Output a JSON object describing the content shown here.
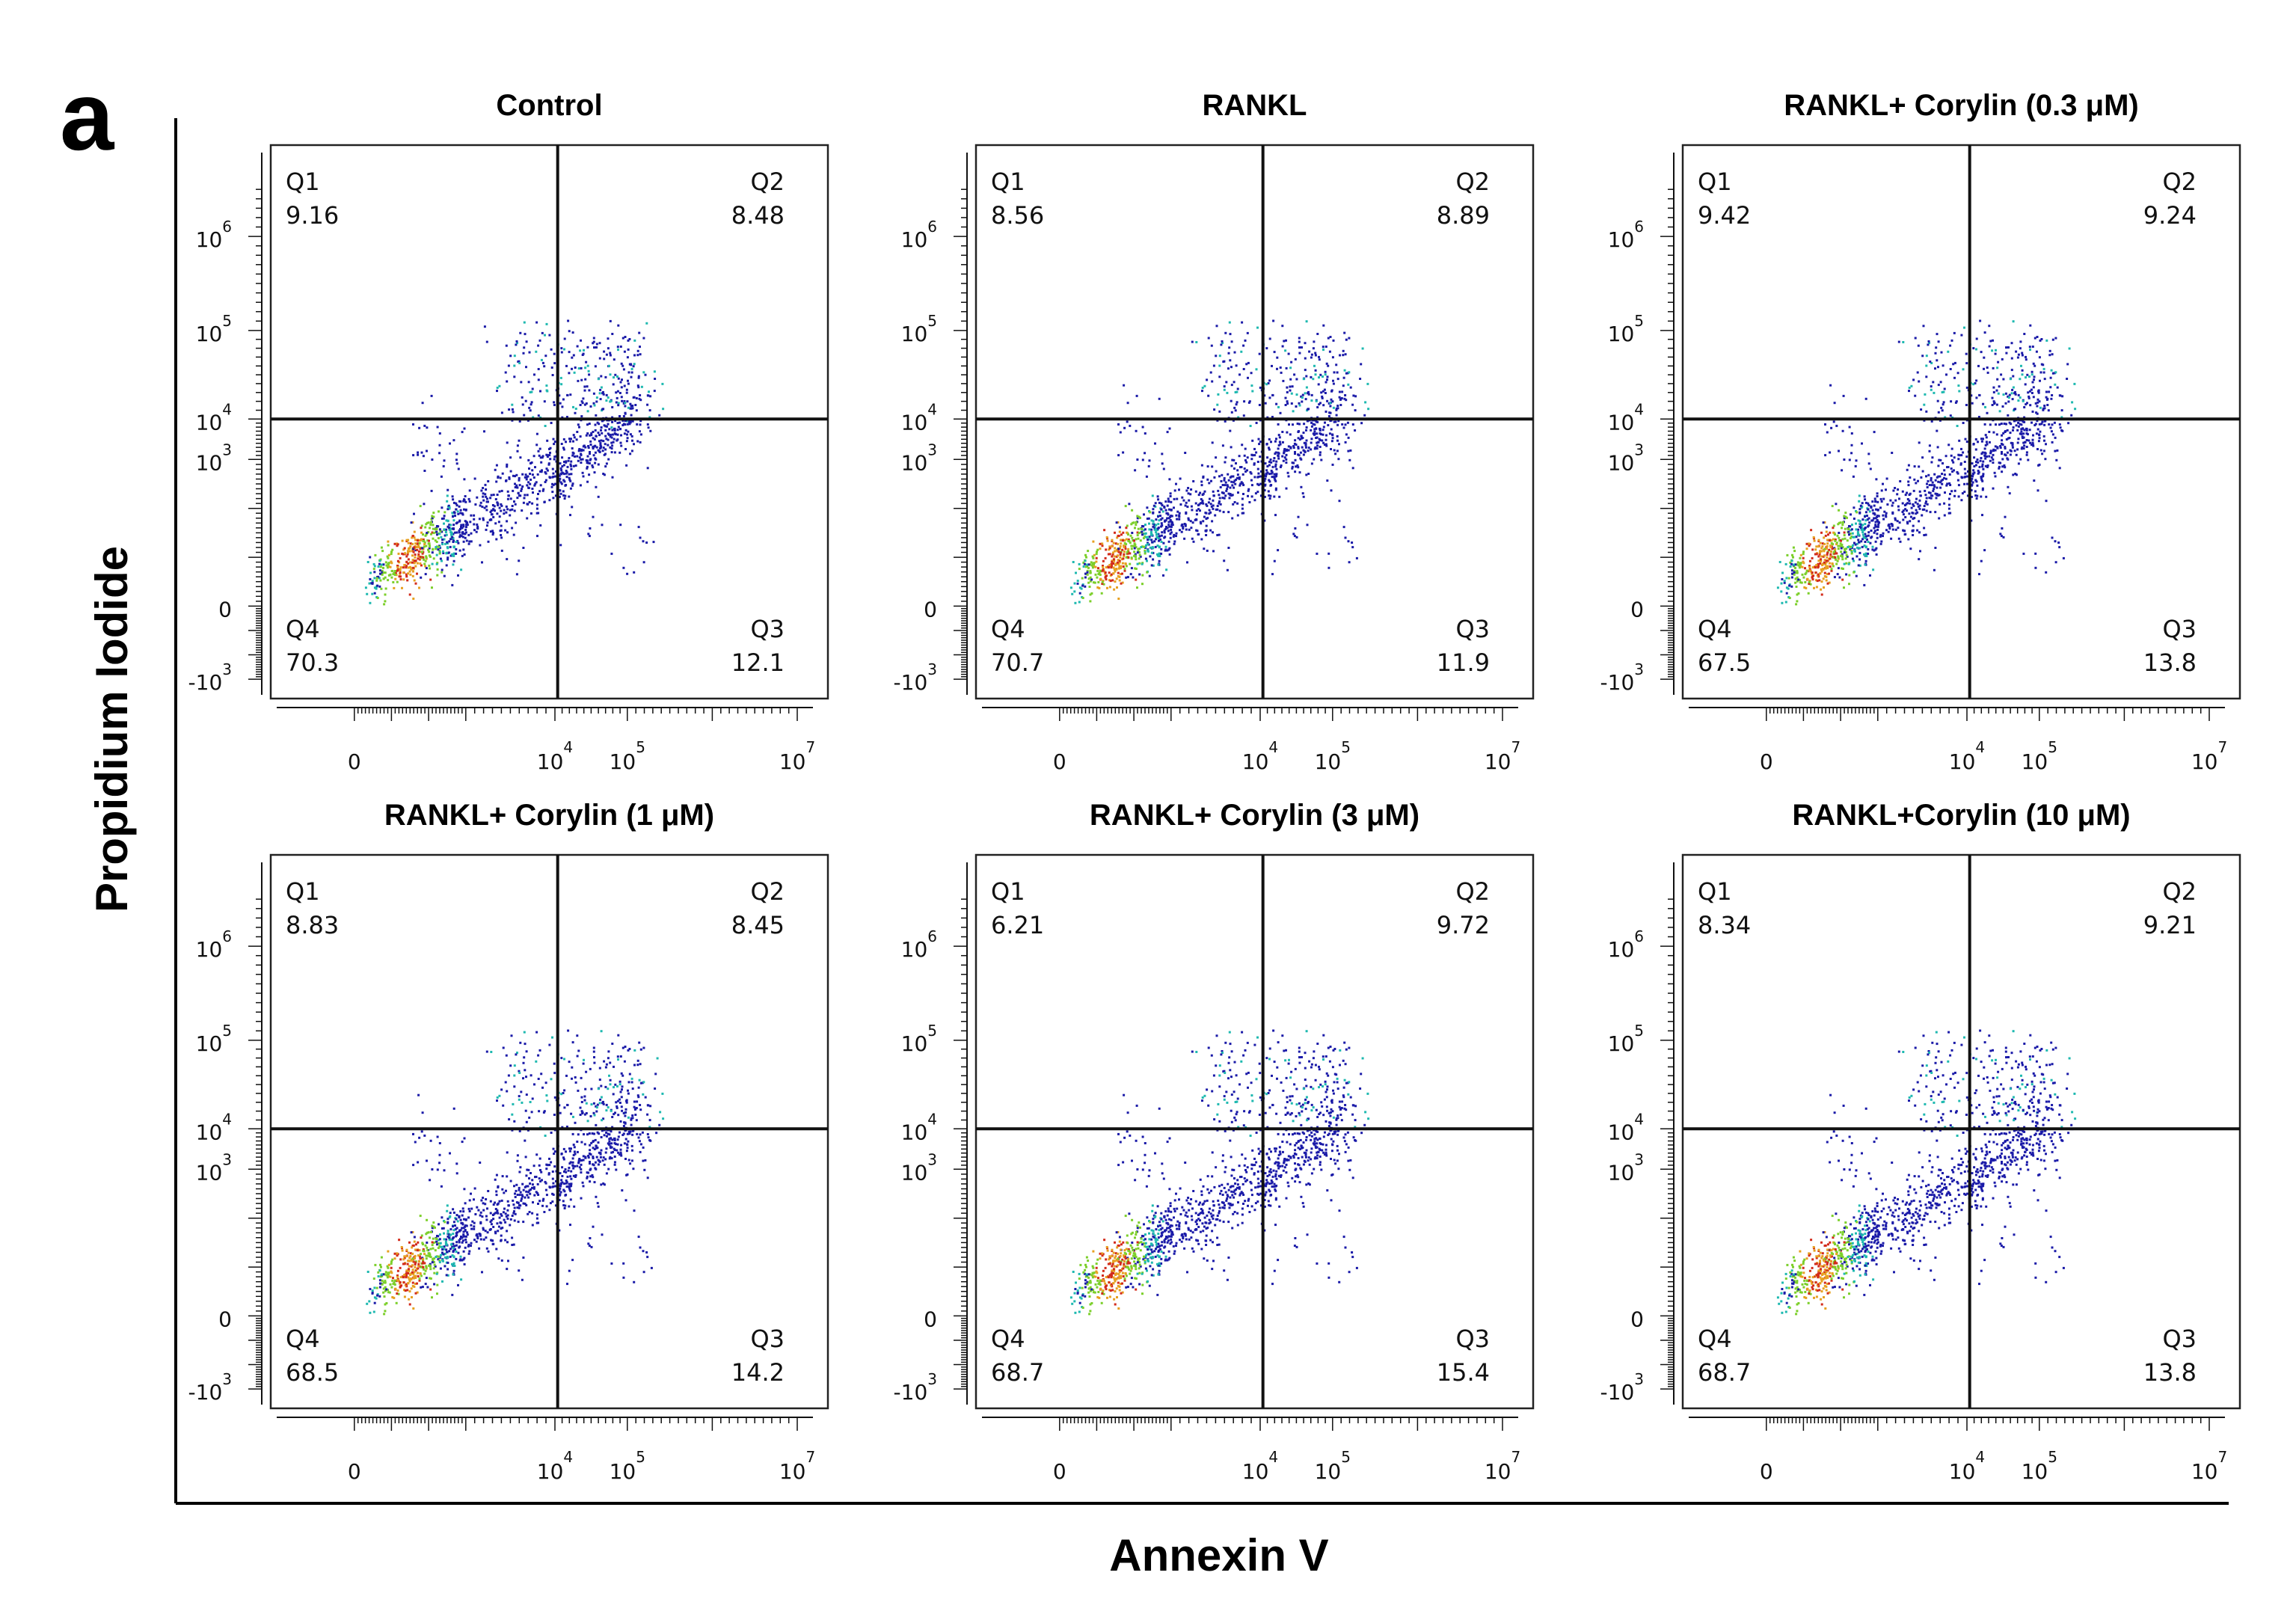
{
  "figure_label": "a",
  "x_axis_label": "Annexin V",
  "y_axis_label": "Propidium Iodide",
  "chart_data": [
    {
      "type": "scatter",
      "title": "Control",
      "x_ticks": [
        {
          "base": "0",
          "exp": ""
        },
        {
          "base": "10",
          "exp": "4"
        },
        {
          "base": "10",
          "exp": "5"
        },
        {
          "base": "10",
          "exp": "7"
        }
      ],
      "y_ticks": [
        {
          "base": "-10",
          "exp": "3"
        },
        {
          "base": "0",
          "exp": ""
        },
        {
          "base": "10",
          "exp": "3"
        },
        {
          "base": "10",
          "exp": "4"
        },
        {
          "base": "10",
          "exp": "5"
        },
        {
          "base": "10",
          "exp": "6"
        }
      ],
      "quadrants": {
        "Q1": "9.16",
        "Q2": "8.48",
        "Q3": "12.1",
        "Q4": "70.3"
      }
    },
    {
      "type": "scatter",
      "title": "RANKL",
      "x_ticks": [
        {
          "base": "0",
          "exp": ""
        },
        {
          "base": "10",
          "exp": "4"
        },
        {
          "base": "10",
          "exp": "5"
        },
        {
          "base": "10",
          "exp": "7"
        }
      ],
      "y_ticks": [
        {
          "base": "-10",
          "exp": "3"
        },
        {
          "base": "0",
          "exp": ""
        },
        {
          "base": "10",
          "exp": "3"
        },
        {
          "base": "10",
          "exp": "4"
        },
        {
          "base": "10",
          "exp": "5"
        },
        {
          "base": "10",
          "exp": "6"
        }
      ],
      "quadrants": {
        "Q1": "8.56",
        "Q2": "8.89",
        "Q3": "11.9",
        "Q4": "70.7"
      }
    },
    {
      "type": "scatter",
      "title": "RANKL+ Corylin (0.3 μM)",
      "x_ticks": [
        {
          "base": "0",
          "exp": ""
        },
        {
          "base": "10",
          "exp": "4"
        },
        {
          "base": "10",
          "exp": "5"
        },
        {
          "base": "10",
          "exp": "7"
        }
      ],
      "y_ticks": [
        {
          "base": "-10",
          "exp": "3"
        },
        {
          "base": "0",
          "exp": ""
        },
        {
          "base": "10",
          "exp": "3"
        },
        {
          "base": "10",
          "exp": "4"
        },
        {
          "base": "10",
          "exp": "5"
        },
        {
          "base": "10",
          "exp": "6"
        }
      ],
      "quadrants": {
        "Q1": "9.42",
        "Q2": "9.24",
        "Q3": "13.8",
        "Q4": "67.5"
      }
    },
    {
      "type": "scatter",
      "title": "RANKL+ Corylin (1 μM)",
      "x_ticks": [
        {
          "base": "0",
          "exp": ""
        },
        {
          "base": "10",
          "exp": "4"
        },
        {
          "base": "10",
          "exp": "5"
        },
        {
          "base": "10",
          "exp": "7"
        }
      ],
      "y_ticks": [
        {
          "base": "-10",
          "exp": "3"
        },
        {
          "base": "0",
          "exp": ""
        },
        {
          "base": "10",
          "exp": "3"
        },
        {
          "base": "10",
          "exp": "4"
        },
        {
          "base": "10",
          "exp": "5"
        },
        {
          "base": "10",
          "exp": "6"
        }
      ],
      "quadrants": {
        "Q1": "8.83",
        "Q2": "8.45",
        "Q3": "14.2",
        "Q4": "68.5"
      }
    },
    {
      "type": "scatter",
      "title": "RANKL+ Corylin (3 μM)",
      "x_ticks": [
        {
          "base": "0",
          "exp": ""
        },
        {
          "base": "10",
          "exp": "4"
        },
        {
          "base": "10",
          "exp": "5"
        },
        {
          "base": "10",
          "exp": "7"
        }
      ],
      "y_ticks": [
        {
          "base": "-10",
          "exp": "3"
        },
        {
          "base": "0",
          "exp": ""
        },
        {
          "base": "10",
          "exp": "3"
        },
        {
          "base": "10",
          "exp": "4"
        },
        {
          "base": "10",
          "exp": "5"
        },
        {
          "base": "10",
          "exp": "6"
        }
      ],
      "quadrants": {
        "Q1": "6.21",
        "Q2": "9.72",
        "Q3": "15.4",
        "Q4": "68.7"
      }
    },
    {
      "type": "scatter",
      "title": "RANKL+Corylin (10 μM)",
      "x_ticks": [
        {
          "base": "0",
          "exp": ""
        },
        {
          "base": "10",
          "exp": "4"
        },
        {
          "base": "10",
          "exp": "5"
        },
        {
          "base": "10",
          "exp": "7"
        }
      ],
      "y_ticks": [
        {
          "base": "-10",
          "exp": "3"
        },
        {
          "base": "0",
          "exp": ""
        },
        {
          "base": "10",
          "exp": "3"
        },
        {
          "base": "10",
          "exp": "4"
        },
        {
          "base": "10",
          "exp": "5"
        },
        {
          "base": "10",
          "exp": "6"
        }
      ],
      "quadrants": {
        "Q1": "8.34",
        "Q2": "9.21",
        "Q3": "13.8",
        "Q4": "68.7"
      }
    }
  ],
  "colors": {
    "density_low": "#1a1aa8",
    "density_mid": "#1fb9b0",
    "density_high": "#7ccf2a",
    "density_peak": "#e7a020",
    "density_max": "#d22a1a"
  }
}
